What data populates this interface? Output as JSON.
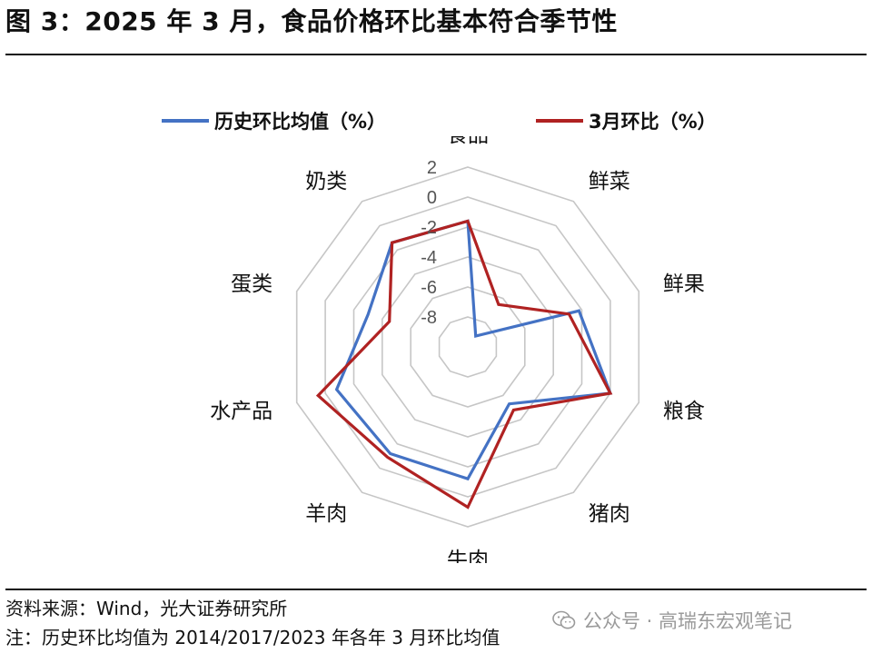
{
  "figure": {
    "title": "图 3：2025 年 3 月，食品价格环比基本符合季节性",
    "source": "资料来源：Wind，光大证券研究所",
    "note": "注：历史环比均值为 2014/2017/2023 年各年 3 月环比均值",
    "watermark": "公众号 · 高瑞东宏观笔记",
    "watermark_icon": "wechat-icon"
  },
  "chart_data": {
    "type": "radar",
    "categories": [
      "食品",
      "鲜菜",
      "鲜果",
      "粮食",
      "猪肉",
      "牛肉",
      "羊肉",
      "水产品",
      "蛋类",
      "奶类"
    ],
    "rlim": [
      -10,
      2
    ],
    "ticks": [
      2,
      0,
      -2,
      -4,
      -6,
      -8
    ],
    "tick_labels": [
      "2",
      "0",
      "-2",
      "-4",
      "-6",
      "-8"
    ],
    "grid": true,
    "legend_position": "top",
    "series": [
      {
        "name": "历史环比均值（%）",
        "color": "#4472C4",
        "values": [
          -1.6,
          -9.1,
          -2.2,
          0.0,
          -5.3,
          -1.2,
          -1.2,
          -0.8,
          -3.0,
          -1.4
        ]
      },
      {
        "name": "3月环比（%）",
        "color": "#B02222",
        "values": [
          -1.6,
          -6.5,
          -2.9,
          0.0,
          -4.8,
          0.7,
          -0.9,
          0.5,
          -4.5,
          -1.4
        ]
      }
    ]
  }
}
